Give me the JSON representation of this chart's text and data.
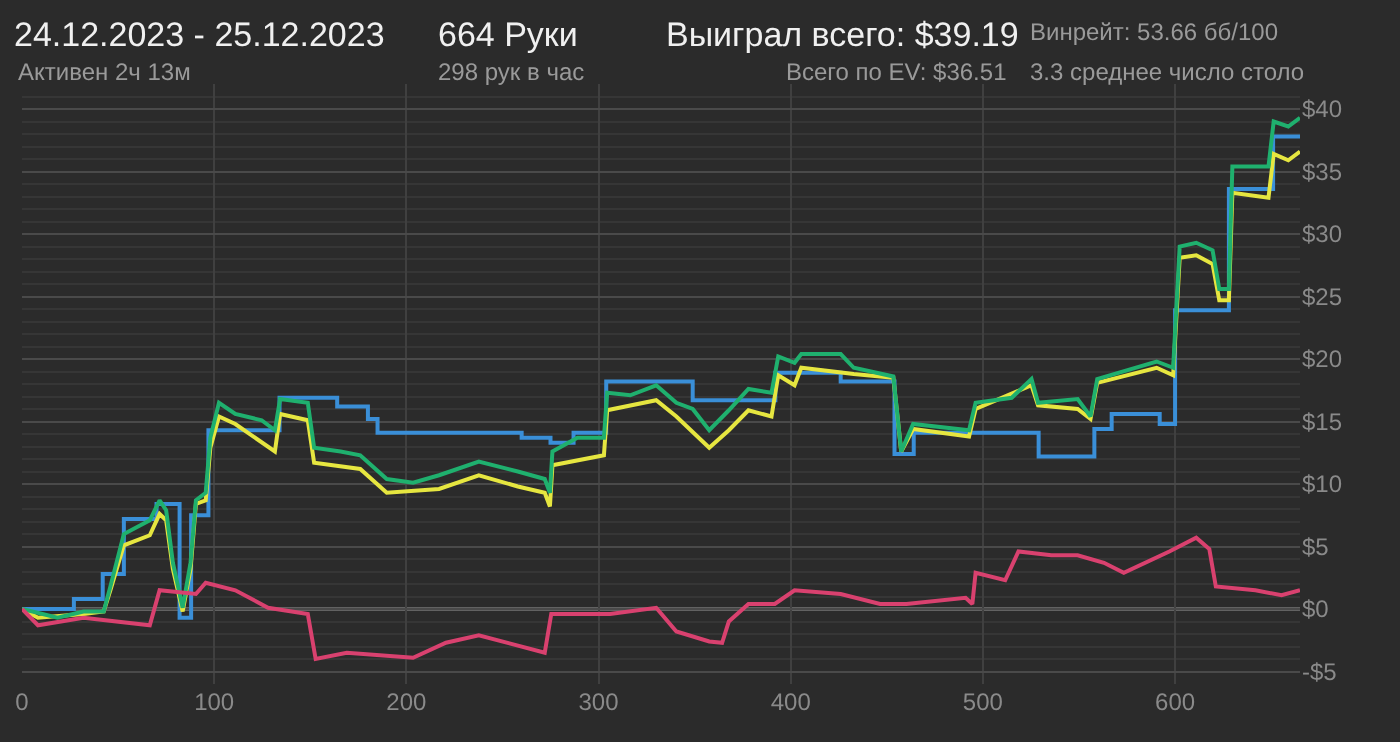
{
  "chart_data": {
    "type": "line",
    "title": "24.12.2023 - 25.12.2023",
    "subtitle": "Активен 2ч 13м",
    "annotations": [
      "664 Руки",
      "298 рук в час",
      "Выиграл всего: $39.19",
      "Всего по EV: $36.51",
      "Винрейт: 53.66 бб/100",
      "3.3 среднее число столо"
    ],
    "series": [
      {
        "color": "#3a8fd8",
        "x": [
          0,
          27,
          27,
          42,
          42,
          53,
          53,
          70,
          70,
          82,
          82,
          88,
          88,
          97,
          97,
          134,
          134,
          164,
          164,
          180,
          180,
          185,
          185,
          260,
          260,
          275,
          275,
          287,
          287,
          304,
          304,
          349,
          349,
          392,
          392,
          426,
          426,
          454,
          454,
          464,
          464,
          529,
          529,
          558,
          558,
          567,
          567,
          592,
          592,
          600,
          600,
          628,
          628,
          651,
          651,
          665
        ],
        "values": [
          0,
          0,
          0.8,
          0.8,
          2.8,
          2.8,
          7.2,
          7.2,
          8.4,
          8.4,
          -0.7,
          -0.7,
          7.5,
          7.5,
          14.3,
          14.3,
          16.9,
          16.9,
          16.2,
          16.2,
          15.2,
          15.2,
          14.1,
          14.1,
          13.7,
          13.7,
          13.3,
          13.3,
          14.1,
          14.1,
          18.2,
          18.2,
          16.7,
          16.7,
          18.9,
          18.9,
          18.2,
          18.2,
          12.4,
          12.4,
          14.1,
          14.1,
          12.2,
          12.2,
          14.4,
          14.4,
          15.6,
          15.6,
          14.8,
          14.8,
          23.9,
          23.9,
          33.6,
          33.6,
          37.8,
          37.8
        ]
      },
      {
        "color": "#e6e640",
        "x": [
          0,
          8.3,
          32,
          42.5,
          46,
          53,
          66.5,
          71.6,
          75,
          78.5,
          83.6,
          87.7,
          90.5,
          95.6,
          98,
          102.5,
          111,
          131.6,
          134.3,
          148.7,
          152,
          176,
          189.8,
          217,
          237.7,
          258,
          272,
          274.7,
          276,
          302.8,
          304.5,
          330,
          340.5,
          357.6,
          367.8,
          378,
          390,
          393.5,
          402,
          405.5,
          432.8,
          453.4,
          457.5,
          463.7,
          492.8,
          496.2,
          525.3,
          528.7,
          549.3,
          556,
          559.5,
          590.4,
          599,
          602.4,
          611,
          619.5,
          623,
          628,
          629.8,
          648.6,
          651.3,
          658.9,
          665
        ],
        "values": [
          0,
          -0.7,
          -0.4,
          -0.2,
          1.5,
          5.1,
          5.9,
          7.6,
          7.1,
          3.2,
          -0.2,
          3.2,
          8.4,
          8.7,
          12.9,
          15.4,
          14.8,
          12.6,
          15.6,
          15.1,
          11.7,
          11.2,
          9.3,
          9.6,
          10.7,
          9.8,
          9.3,
          8.2,
          11.5,
          12.3,
          15.9,
          16.7,
          15.4,
          12.9,
          14.3,
          15.9,
          15.4,
          18.7,
          17.9,
          19.3,
          18.8,
          18.5,
          12.6,
          14.4,
          13.8,
          16.0,
          17.9,
          16.3,
          16.0,
          15.2,
          18.1,
          19.3,
          18.7,
          28.1,
          28.3,
          27.6,
          24.7,
          24.7,
          33.3,
          32.9,
          36.4,
          35.9,
          36.6
        ]
      },
      {
        "color": "#1fb06e",
        "x": [
          0,
          18.5,
          32,
          42.5,
          46,
          53,
          66.5,
          71.6,
          75,
          78.5,
          83.6,
          87.7,
          90.5,
          95.6,
          98,
          102.5,
          111,
          124.7,
          131.6,
          134.3,
          148.7,
          152,
          165.8,
          176,
          189.8,
          203.5,
          217,
          237.7,
          258,
          272,
          274.7,
          276,
          289,
          302.8,
          304.5,
          316.5,
          330,
          340.5,
          349,
          357.6,
          367.8,
          378,
          390,
          393.5,
          402,
          405.5,
          426,
          432.8,
          453.4,
          457.5,
          463.7,
          492.8,
          496.2,
          515,
          525.3,
          528.7,
          549.3,
          556,
          559.5,
          590.4,
          599,
          602.4,
          611,
          619.5,
          623,
          628,
          629.8,
          648.6,
          651.3,
          658.9,
          665
        ],
        "values": [
          0,
          -0.7,
          -0.2,
          -0.2,
          1.8,
          6.0,
          7.1,
          8.7,
          7.9,
          3.7,
          0.1,
          3.7,
          8.7,
          9.3,
          13.7,
          16.5,
          15.6,
          15.1,
          14.3,
          16.8,
          16.5,
          12.9,
          12.6,
          12.3,
          10.4,
          10.1,
          10.7,
          11.8,
          11.0,
          10.4,
          9.3,
          12.6,
          13.7,
          13.7,
          17.3,
          17.1,
          17.9,
          16.5,
          16.0,
          14.3,
          15.9,
          17.6,
          17.3,
          20.2,
          19.7,
          20.4,
          20.4,
          19.3,
          18.6,
          12.6,
          14.8,
          14.3,
          16.5,
          16.9,
          18.4,
          16.5,
          16.8,
          15.4,
          18.4,
          19.8,
          19.3,
          29.0,
          29.3,
          28.7,
          25.6,
          25.6,
          35.4,
          35.4,
          39.0,
          38.6,
          39.3
        ]
      },
      {
        "color": "#d9416f",
        "x": [
          0,
          8.3,
          32,
          66.5,
          71.6,
          90.5,
          95.6,
          111,
          128,
          148.7,
          152.8,
          169,
          203.5,
          220.6,
          237.7,
          272,
          275.4,
          306,
          330,
          340.5,
          357.6,
          364.3,
          367.8,
          378,
          391.7,
          402,
          426,
          446.5,
          460.2,
          491,
          494.5,
          496.2,
          511.6,
          518.5,
          535.6,
          549.3,
          563,
          573.3,
          597,
          611,
          617.8,
          621.2,
          641.8,
          655.4,
          665
        ],
        "values": [
          0,
          -1.3,
          -0.7,
          -1.3,
          1.5,
          1.2,
          2.1,
          1.5,
          0.1,
          -0.4,
          -4.0,
          -3.5,
          -3.9,
          -2.7,
          -2.1,
          -3.5,
          -0.4,
          -0.4,
          0.1,
          -1.8,
          -2.6,
          -2.7,
          -1.0,
          0.4,
          0.4,
          1.5,
          1.2,
          0.4,
          0.4,
          0.9,
          0.4,
          2.9,
          2.3,
          4.6,
          4.3,
          4.3,
          3.7,
          2.9,
          4.6,
          5.7,
          4.8,
          1.8,
          1.5,
          1.1,
          1.5
        ]
      }
    ],
    "xlim": [
      0,
      665
    ],
    "xticks": [
      0,
      100,
      200,
      300,
      400,
      500,
      600
    ],
    "ylim": [
      -6,
      42
    ],
    "yticks": [
      {
        "value": -5,
        "label": "-$5"
      },
      {
        "value": 0,
        "label": "$0"
      },
      {
        "value": 5,
        "label": "$5"
      },
      {
        "value": 10,
        "label": "$10"
      },
      {
        "value": 15,
        "label": "$15"
      },
      {
        "value": 20,
        "label": "$20"
      },
      {
        "value": 25,
        "label": "$25"
      },
      {
        "value": 30,
        "label": "$30"
      },
      {
        "value": 35,
        "label": "$35"
      },
      {
        "value": 40,
        "label": "$40"
      }
    ],
    "ref_lines": [
      {
        "axis": "y",
        "value": 0,
        "color": "#9a9a9a"
      }
    ],
    "grid": true,
    "marker": "none",
    "line_style": "solid"
  }
}
